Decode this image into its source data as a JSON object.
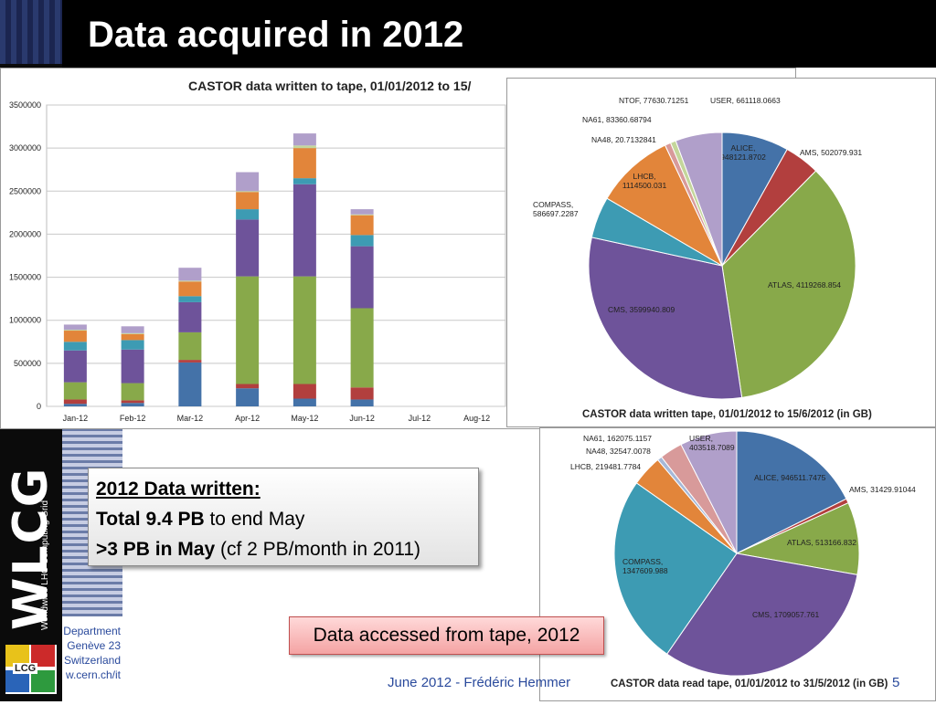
{
  "slide": {
    "title": "Data acquired in 2012",
    "department_lines": [
      "Department",
      "Genève 23",
      "Switzerland",
      "w.cern.ch/it"
    ],
    "logo_text": "WLCG",
    "logo_subtext": "Worldwide LHC Computing Grid",
    "lcg_logo_text": "LCG",
    "textbox": {
      "heading": "2012 Data written:",
      "line1_bold": "Total 9.4 PB",
      "line1_rest": " to end May",
      "line2_bold": ">3 PB in May",
      "line2_rest": " (cf 2 PB/month in 2011)"
    },
    "accessed_label": "Data accessed from tape, 2012",
    "footer": "June 2012 - Frédéric Hemmer",
    "page_number": "5"
  },
  "colors": {
    "alice": "#4472a8",
    "ams": "#b23f3e",
    "atlas": "#88a94a",
    "cms": "#6e539a",
    "compass": "#3d9bb3",
    "lhcb": "#e2853a",
    "na48": "#a6b8d8",
    "na61": "#d89a9a",
    "ntof": "#c4d69b",
    "user": "#b09fca"
  },
  "chart_data": [
    {
      "type": "bar",
      "stacked": true,
      "title": "CASTOR data written to tape, 01/01/2012 to 15/",
      "categories": [
        "Jan-12",
        "Feb-12",
        "Mar-12",
        "Apr-12",
        "May-12",
        "Jun-12",
        "Jul-12",
        "Aug-12"
      ],
      "ylim": [
        0,
        3500000
      ],
      "yticks": [
        "0",
        "500000",
        "1000000",
        "1500000",
        "2000000",
        "2500000",
        "3000000",
        "3500000"
      ],
      "grid": true,
      "series": [
        {
          "color": "#4472a8",
          "values": [
            30000,
            40000,
            510000,
            210000,
            90000,
            80000,
            0,
            0
          ]
        },
        {
          "color": "#b23f3e",
          "values": [
            50000,
            30000,
            30000,
            50000,
            170000,
            140000,
            0,
            0
          ]
        },
        {
          "color": "#88a94a",
          "values": [
            200000,
            200000,
            320000,
            1250000,
            1250000,
            920000,
            0,
            0
          ]
        },
        {
          "color": "#6e539a",
          "values": [
            370000,
            390000,
            350000,
            660000,
            1070000,
            720000,
            0,
            0
          ]
        },
        {
          "color": "#3d9bb3",
          "values": [
            100000,
            110000,
            70000,
            120000,
            70000,
            130000,
            0,
            0
          ]
        },
        {
          "color": "#e2853a",
          "values": [
            130000,
            70000,
            170000,
            200000,
            350000,
            230000,
            0,
            0
          ]
        },
        {
          "color": "#c4d69b",
          "values": [
            10000,
            10000,
            10000,
            10000,
            30000,
            10000,
            0,
            0
          ]
        },
        {
          "color": "#b09fca",
          "values": [
            60000,
            80000,
            150000,
            220000,
            140000,
            60000,
            0,
            0
          ]
        }
      ]
    },
    {
      "type": "pie",
      "title": "CASTOR data written tape, 01/01/2012 to 15/6/2012 (in GB)",
      "slices": [
        {
          "label": "ALICE",
          "value": 948121.8702,
          "display": "ALICE,\n948121.8702",
          "color": "#4472a8"
        },
        {
          "label": "AMS",
          "value": 502079.931,
          "display": "AMS, 502079.931",
          "color": "#b23f3e"
        },
        {
          "label": "ATLAS",
          "value": 4119268.854,
          "display": "ATLAS, 4119268.854",
          "color": "#88a94a"
        },
        {
          "label": "CMS",
          "value": 3599940.809,
          "display": "CMS, 3599940.809",
          "color": "#6e539a"
        },
        {
          "label": "COMPASS",
          "value": 586697.2287,
          "display": "COMPASS,\n586697.2287",
          "color": "#3d9bb3"
        },
        {
          "label": "LHCB",
          "value": 1114500.031,
          "display": "LHCB,\n1114500.031",
          "color": "#e2853a"
        },
        {
          "label": "NA48",
          "value": 20.7132841,
          "display": "NA48, 20.7132841",
          "color": "#a6b8d8"
        },
        {
          "label": "NA61",
          "value": 83360.68794,
          "display": "NA61, 83360.68794",
          "color": "#d89a9a"
        },
        {
          "label": "NTOF",
          "value": 77630.71251,
          "display": "NTOF, 77630.71251",
          "color": "#c4d69b"
        },
        {
          "label": "USER",
          "value": 661118.0663,
          "display": "USER, 661118.0663",
          "color": "#b09fca"
        }
      ]
    },
    {
      "type": "pie",
      "title": "CASTOR data read tape, 01/01/2012 to 31/5/2012 (in GB)",
      "slices": [
        {
          "label": "ALICE",
          "value": 946511.7475,
          "display": "ALICE, 946511.7475",
          "color": "#4472a8"
        },
        {
          "label": "AMS",
          "value": 31429.91044,
          "display": "AMS, 31429.91044",
          "color": "#b23f3e"
        },
        {
          "label": "ATLAS",
          "value": 513166.832,
          "display": "ATLAS, 513166.832",
          "color": "#88a94a"
        },
        {
          "label": "CMS",
          "value": 1709057.761,
          "display": "CMS, 1709057.761",
          "color": "#6e539a"
        },
        {
          "label": "COMPASS",
          "value": 1347609.988,
          "display": "COMPASS,\n1347609.988",
          "color": "#3d9bb3"
        },
        {
          "label": "LHCB",
          "value": 219481.7784,
          "display": "LHCB, 219481.7784",
          "color": "#e2853a"
        },
        {
          "label": "NA48",
          "value": 32547.0078,
          "display": "NA48, 32547.0078",
          "color": "#a6b8d8"
        },
        {
          "label": "NA61",
          "value": 162075.1157,
          "display": "NA61, 162075.1157",
          "color": "#d89a9a"
        },
        {
          "label": "USER",
          "value": 403518.7089,
          "display": "USER,\n403518.7089",
          "color": "#b09fca"
        }
      ]
    }
  ]
}
